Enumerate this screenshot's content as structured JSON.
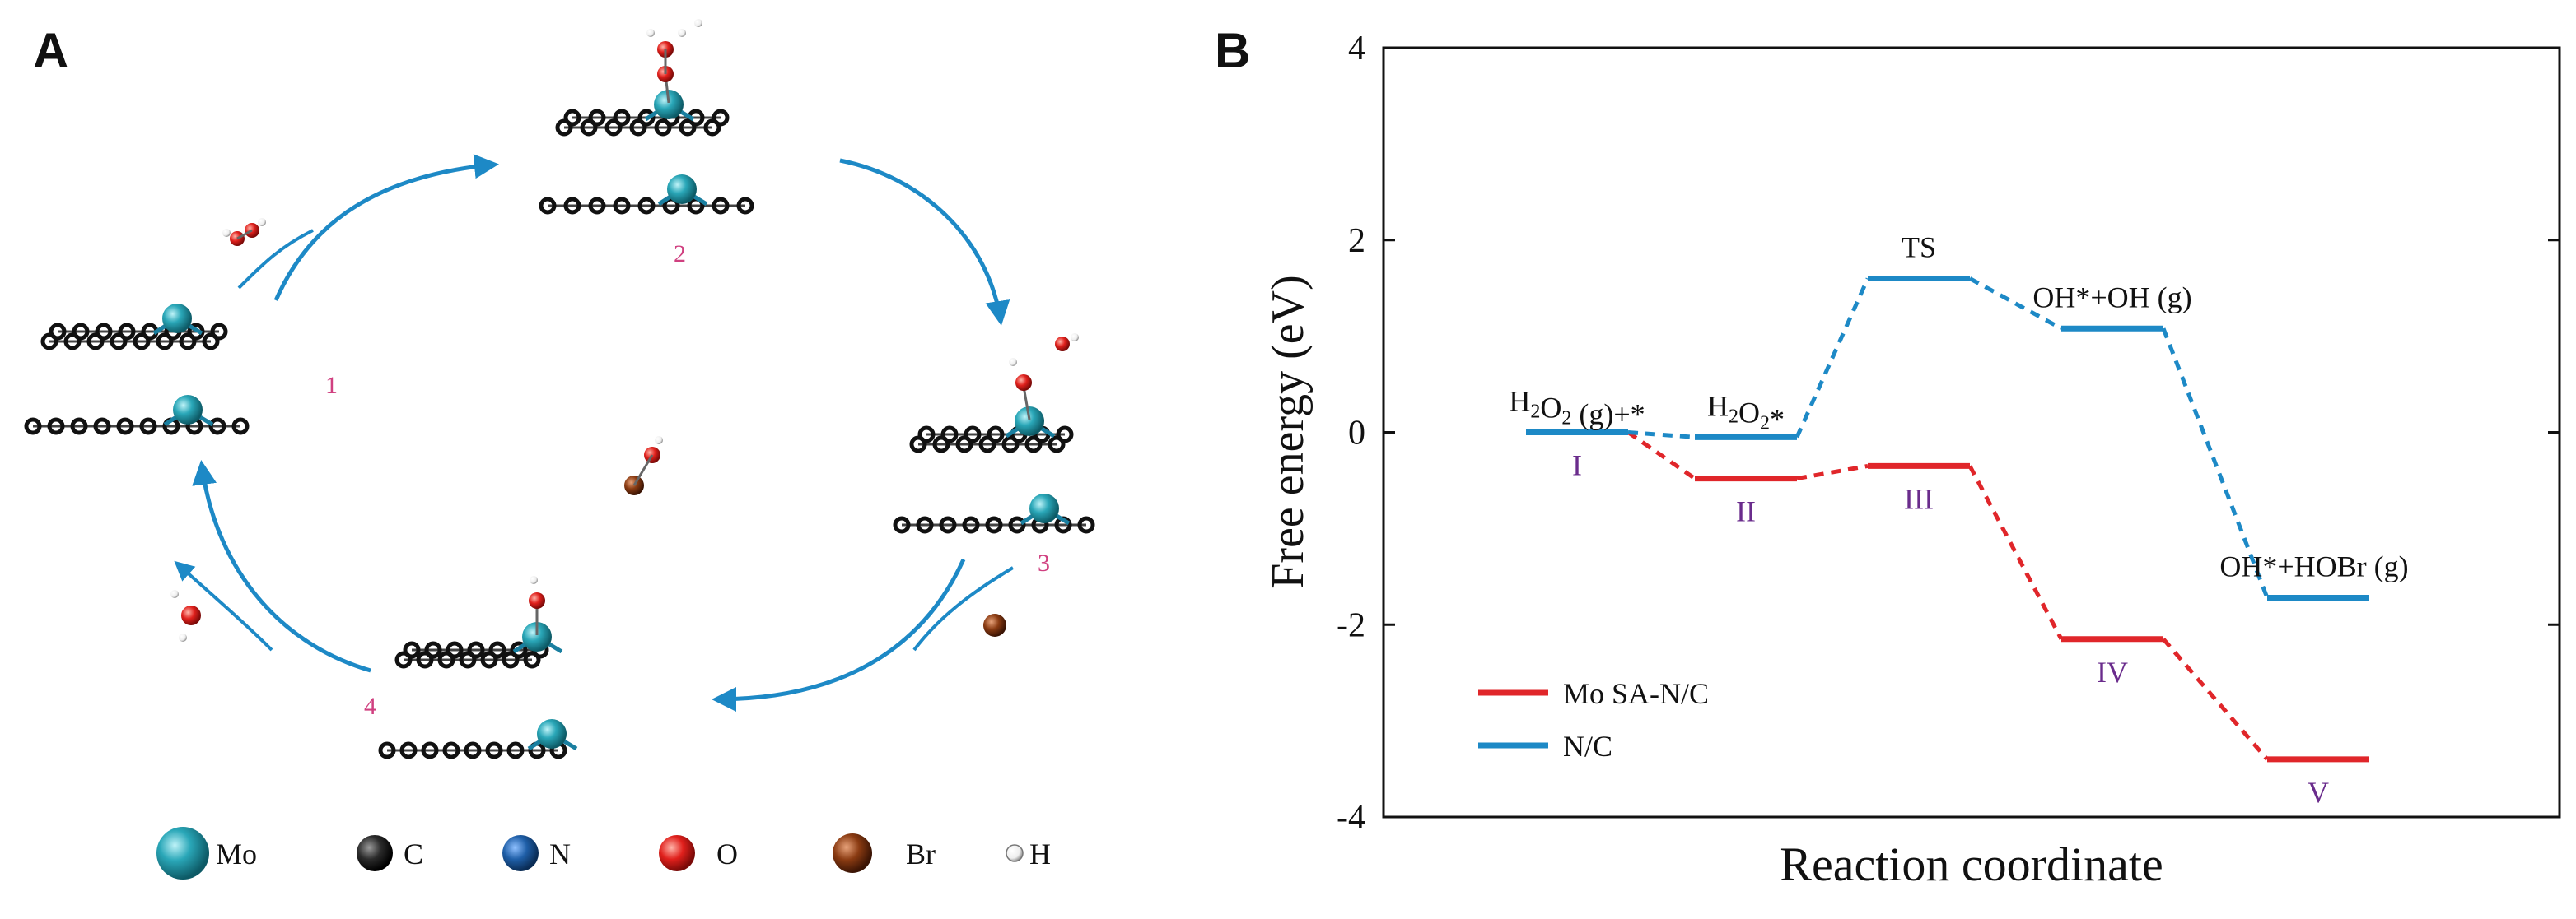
{
  "panel_a": {
    "letter": "A",
    "step_labels": [
      "1",
      "2",
      "3",
      "4"
    ],
    "atom_legend": [
      {
        "symbol": "Mo",
        "color": "#2aa7b8"
      },
      {
        "symbol": "C",
        "color": "#2b2b2b"
      },
      {
        "symbol": "N",
        "color": "#1f5fa8"
      },
      {
        "symbol": "O",
        "color": "#e0201c"
      },
      {
        "symbol": "Br",
        "color": "#8a3b12"
      },
      {
        "symbol": "H",
        "color": "#f2f2f2"
      }
    ]
  },
  "panel_b": {
    "letter": "B",
    "colors": {
      "mo": "#e0262a",
      "nc": "#1d89c6"
    }
  },
  "chart_data": {
    "type": "line",
    "title": "",
    "xlabel": "Reaction coordinate",
    "ylabel": "Free energy (eV)",
    "ylim": [
      -4,
      4
    ],
    "yticks": [
      "-4",
      "-2",
      "0",
      "2",
      "4"
    ],
    "series": [
      {
        "name": "Mo SA-N/C",
        "color": "#e0262a",
        "levels": [
          {
            "pos": 1,
            "energy": 0.0,
            "label": "I"
          },
          {
            "pos": 2,
            "energy": -0.48,
            "label": "II"
          },
          {
            "pos": 3,
            "energy": -0.35,
            "label": "III"
          },
          {
            "pos": 4,
            "energy": -2.15,
            "label": "IV"
          },
          {
            "pos": 5,
            "energy": -3.4,
            "label": "V"
          }
        ]
      },
      {
        "name": "N/C",
        "color": "#1d89c6",
        "levels": [
          {
            "pos": 1,
            "energy": 0.0,
            "label": "H2O2 (g)+*"
          },
          {
            "pos": 2,
            "energy": -0.05,
            "label": "H2O2*"
          },
          {
            "pos": 3,
            "energy": 1.6,
            "label": "TS"
          },
          {
            "pos": 4,
            "energy": 1.08,
            "label": "OH*+OH (g)"
          },
          {
            "pos": 5,
            "energy": -1.72,
            "label": "OH*+HOBr (g)"
          }
        ]
      }
    ]
  }
}
